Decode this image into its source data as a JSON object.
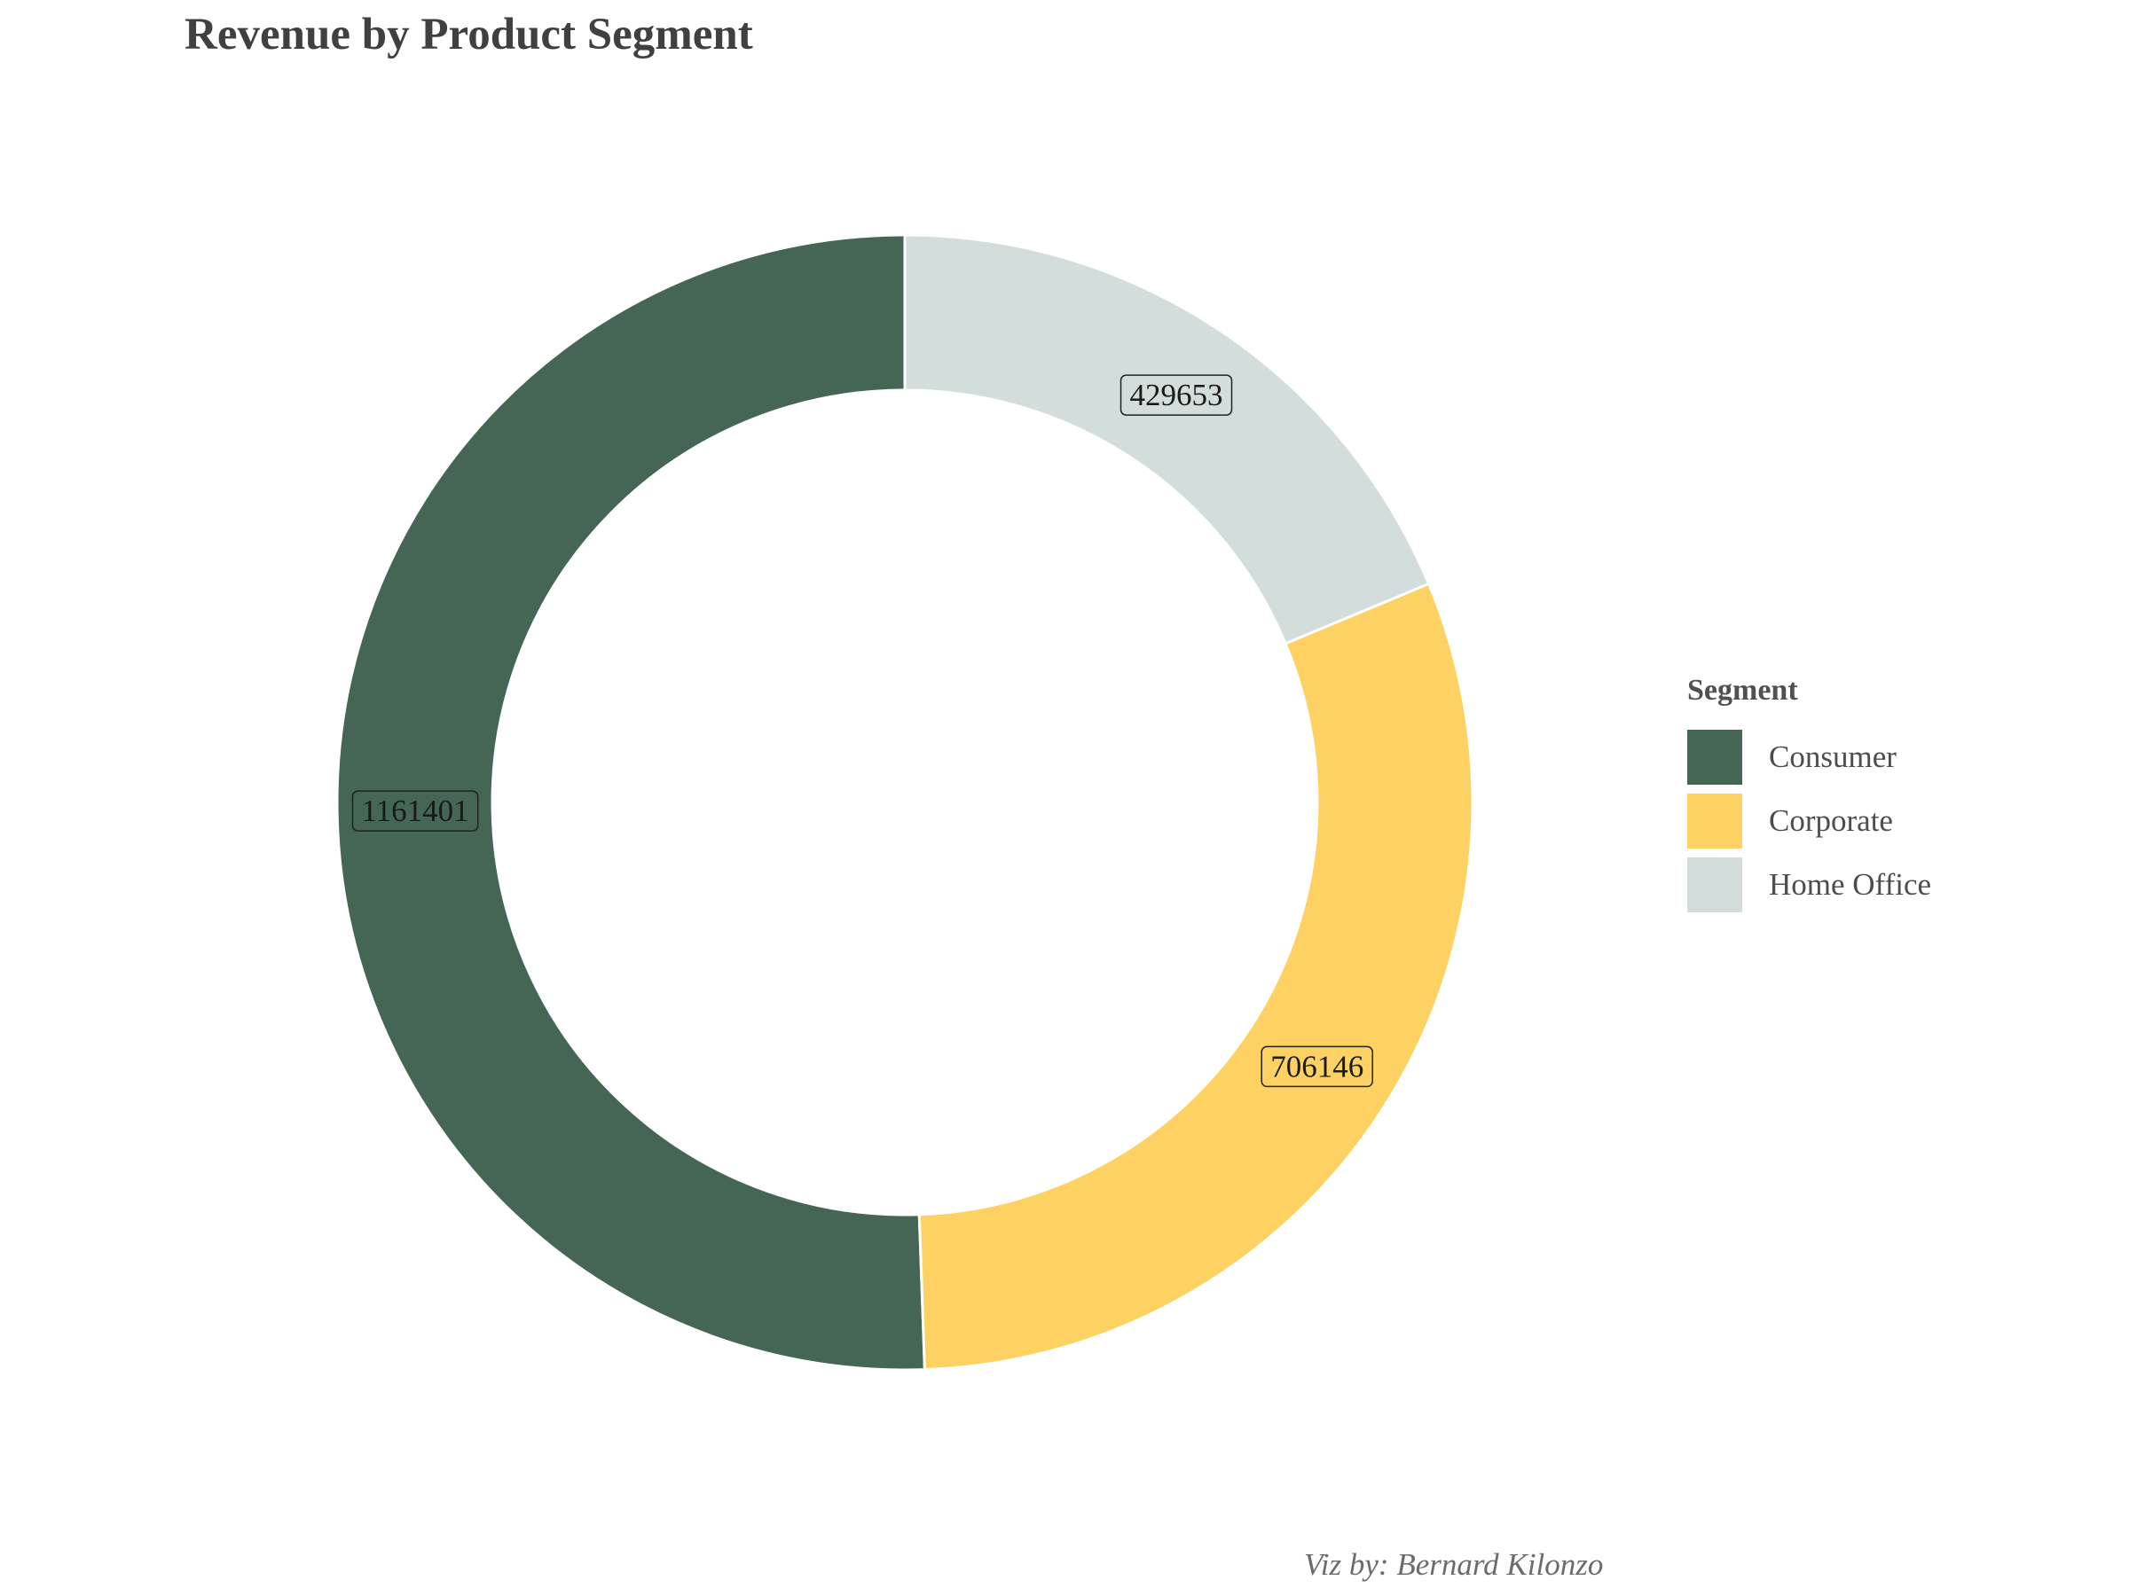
{
  "chart_data": {
    "type": "pie",
    "donut": true,
    "title": "Revenue by Product Segment",
    "caption": "Viz by: Bernard Kilonzo",
    "legend_title": "Segment",
    "legend_position": "right",
    "categories": [
      "Consumer",
      "Corporate",
      "Home Office"
    ],
    "values": [
      1161401,
      706146,
      429653
    ],
    "data_labels": [
      "1161401",
      "706146",
      "429653"
    ],
    "colors": [
      "#456555",
      "#FDD262",
      "#D3DDDC"
    ],
    "start": "top",
    "direction": "counterclockwise"
  }
}
